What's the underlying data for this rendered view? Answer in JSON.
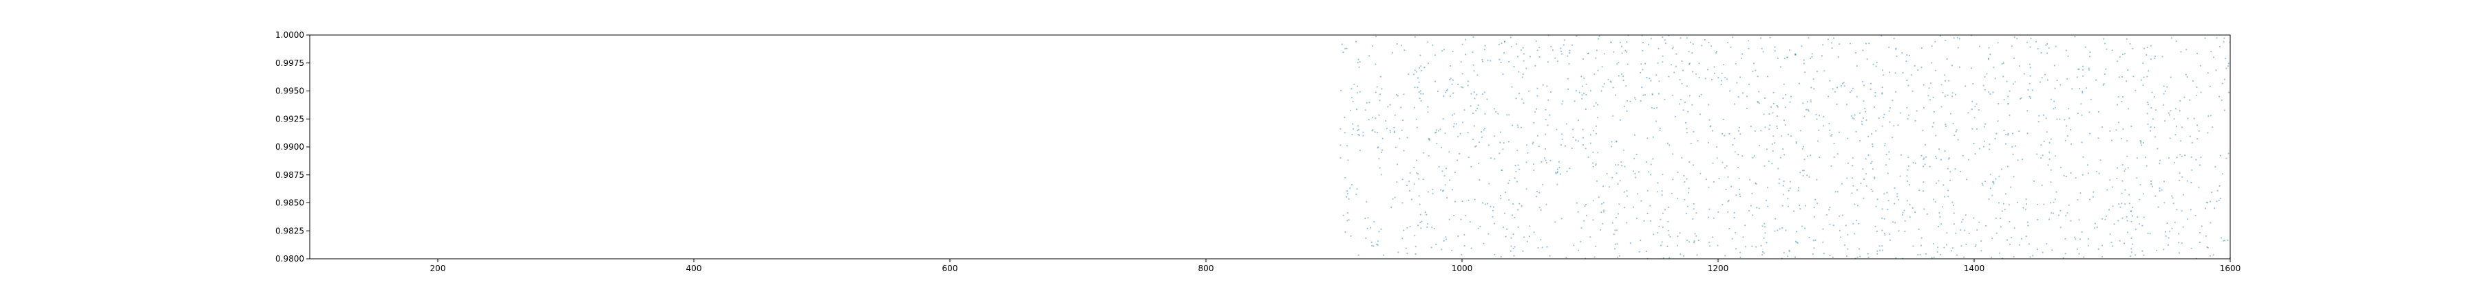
{
  "chart_data": {
    "type": "scatter",
    "title": "",
    "xlabel": "",
    "ylabel": "",
    "xlim": [
      100,
      1600
    ],
    "ylim": [
      0.98,
      1.0
    ],
    "x_ticks": [
      "200",
      "400",
      "600",
      "800",
      "1000",
      "1200",
      "1400",
      "1600"
    ],
    "y_ticks": [
      "0.9800",
      "0.9825",
      "0.9850",
      "0.9875",
      "0.9900",
      "0.9925",
      "0.9950",
      "0.9975",
      "1.0000"
    ],
    "grid": false,
    "legend": "none",
    "point_color": "#1f77b4",
    "series": [
      {
        "x_range": [
          905,
          1600
        ],
        "y_range": [
          0.98,
          1.0
        ],
        "count": 2000,
        "distribution": "uniform"
      }
    ]
  }
}
